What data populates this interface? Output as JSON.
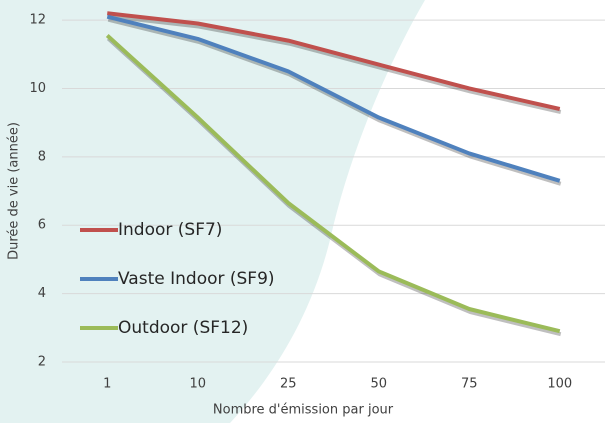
{
  "chart_data": {
    "type": "line",
    "x_label": "Nombre d'émission par jour",
    "y_label": "Durée de vie (année)",
    "categories": [
      "1",
      "10",
      "25",
      "50",
      "75",
      "100"
    ],
    "series": [
      {
        "name": "Indoor (SF7)",
        "color": "#c0504d",
        "values": [
          12.2,
          11.9,
          11.4,
          10.7,
          10.0,
          9.4
        ]
      },
      {
        "name": "Vaste Indoor (SF9)",
        "color": "#4f81bd",
        "values": [
          12.1,
          11.45,
          10.5,
          9.15,
          8.1,
          7.3
        ]
      },
      {
        "name": "Outdoor (SF12)",
        "color": "#9bbb59",
        "values": [
          11.55,
          9.15,
          6.65,
          4.65,
          3.55,
          2.9
        ]
      }
    ],
    "ylim": [
      2,
      12.5
    ],
    "yticks": [
      2,
      4,
      6,
      8,
      10,
      12
    ],
    "grid": true,
    "legend": "left"
  }
}
